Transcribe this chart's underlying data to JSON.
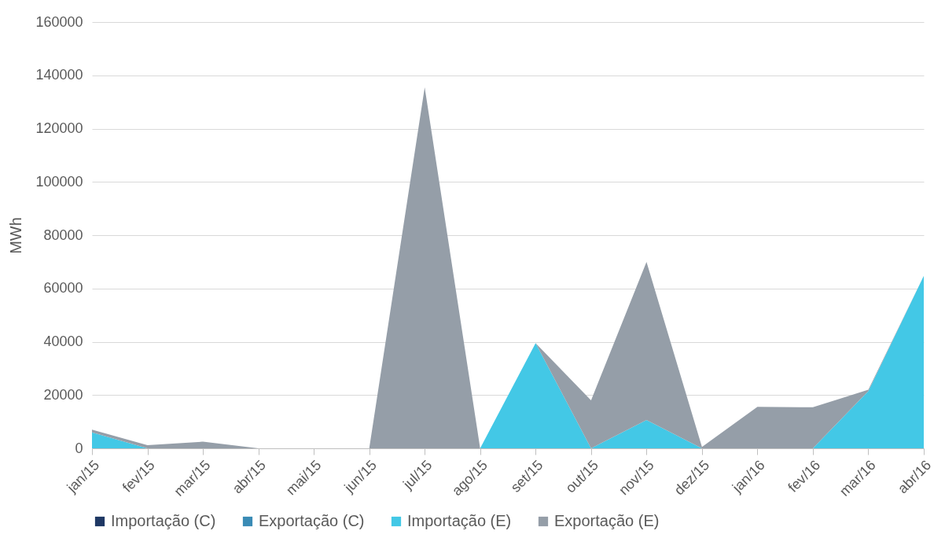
{
  "chart_data": {
    "type": "area",
    "ylabel": "MWh",
    "stacked": true,
    "categories": [
      "jan/15",
      "fev/15",
      "mar/15",
      "abr/15",
      "mai/15",
      "jun/15",
      "jul/15",
      "ago/15",
      "set/15",
      "out/15",
      "nov/15",
      "dez/15",
      "jan/16",
      "fev/16",
      "mar/16",
      "abr/16"
    ],
    "series": [
      {
        "name": "Importação (C)",
        "color": "#1f3864",
        "values": [
          null,
          null,
          null,
          null,
          null,
          null,
          null,
          null,
          null,
          null,
          null,
          null,
          null,
          null,
          null,
          null
        ]
      },
      {
        "name": "Exportação (C)",
        "color": "#3a8bb5",
        "values": [
          null,
          null,
          null,
          null,
          null,
          null,
          null,
          null,
          null,
          null,
          null,
          null,
          null,
          null,
          null,
          null
        ]
      },
      {
        "name": "Importação (E)",
        "color": "#43c8e6",
        "values": [
          6000,
          0,
          0,
          0,
          0,
          0,
          0,
          0,
          39500,
          0,
          10600,
          0,
          0,
          0,
          21500,
          64700
        ]
      },
      {
        "name": "Exportação (E)",
        "color": "#959ea8",
        "values": [
          1000,
          1200,
          2500,
          0,
          0,
          0,
          135500,
          0,
          0,
          18000,
          59400,
          500,
          15600,
          15400,
          500,
          0
        ]
      }
    ],
    "ylim": [
      0,
      160000
    ],
    "yticks": [
      0,
      20000,
      40000,
      60000,
      80000,
      100000,
      120000,
      140000,
      160000
    ],
    "grid": "y",
    "legend": "bottom"
  }
}
